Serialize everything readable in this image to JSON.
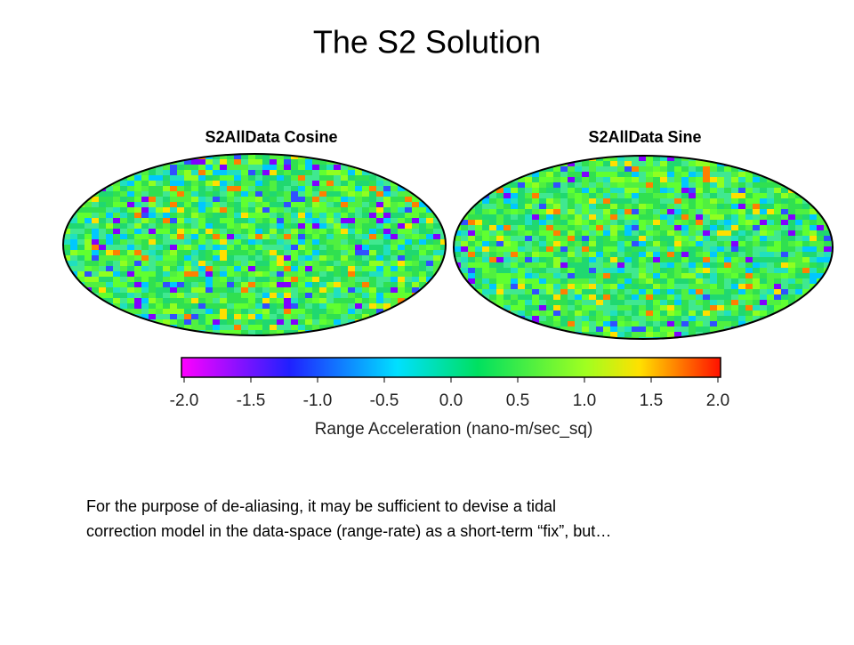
{
  "title": "The S2 Solution",
  "maps": [
    {
      "title": "S2AllData Cosine"
    },
    {
      "title": "S2AllData Sine"
    }
  ],
  "colorbar": {
    "lim": [
      -2,
      2
    ],
    "ticks": [
      {
        "value": -2,
        "label": "-2.0"
      },
      {
        "value": -1.5,
        "label": "-1.5"
      },
      {
        "value": -1,
        "label": "-1.0"
      },
      {
        "value": -0.5,
        "label": "-0.5"
      },
      {
        "value": 0,
        "label": "0.0"
      },
      {
        "value": 0.5,
        "label": "0.5"
      },
      {
        "value": 1,
        "label": "1.0"
      },
      {
        "value": 1.5,
        "label": "1.5"
      },
      {
        "value": 2,
        "label": "2.0"
      }
    ],
    "label": "Range Acceleration (nano-m/sec_sq)"
  },
  "body": [
    "For the purpose of de-aliasing, it may be sufficient to devise a tidal",
    "correction model in the data-space (range-rate) as a short-term “fix”, but…"
  ]
}
